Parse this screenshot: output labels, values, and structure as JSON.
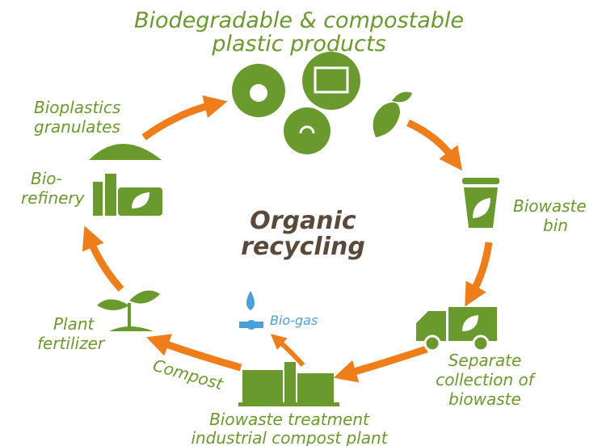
{
  "title_lines": [
    "Biodegradable & compostable",
    "plastic products"
  ],
  "center_lines": [
    "Organic",
    "recycling"
  ],
  "nodes": [
    {
      "lines": [
        "Bioplastics",
        "granulates"
      ]
    },
    {
      "lines": [
        "Bio-",
        "refinery"
      ]
    },
    {
      "lines": [
        "Biowaste",
        "bin"
      ]
    },
    {
      "lines": [
        "Separate",
        "collection of",
        "biowaste"
      ]
    },
    {
      "lines": [
        "Bio-gas"
      ]
    },
    {
      "lines": [
        "Compost"
      ]
    },
    {
      "lines": [
        "Plant",
        "fertilizer"
      ]
    },
    {
      "lines": [
        "Biowaste treatment",
        "industrial compost plant"
      ]
    }
  ]
}
